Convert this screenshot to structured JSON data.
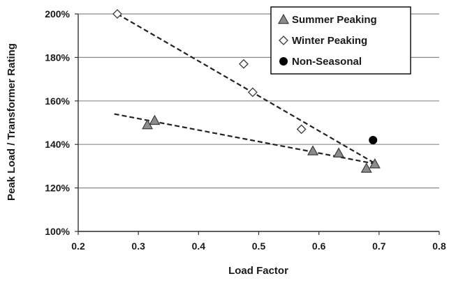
{
  "chart_data": {
    "type": "scatter",
    "title": "",
    "xlabel": "Load Factor",
    "ylabel": "Peak Load / Transformer Rating",
    "xlim": [
      0.2,
      0.8
    ],
    "ylim": [
      100,
      200
    ],
    "x_ticks": [
      0.2,
      0.3,
      0.4,
      0.5,
      0.6,
      0.7,
      0.8
    ],
    "x_tick_labels": [
      "0.2",
      "0.3",
      "0.4",
      "0.5",
      "0.6",
      "0.7",
      "0.8"
    ],
    "y_ticks": [
      100,
      120,
      140,
      160,
      180,
      200
    ],
    "y_tick_labels": [
      "100%",
      "120%",
      "140%",
      "160%",
      "180%",
      "200%"
    ],
    "grid": "horizontal major gridlines",
    "legend_position": "top-right",
    "series": [
      {
        "name": "Summer Peaking",
        "marker": "triangle",
        "color": "#7f7f7f",
        "points": [
          {
            "x": 0.315,
            "y": 149
          },
          {
            "x": 0.327,
            "y": 151
          },
          {
            "x": 0.59,
            "y": 137
          },
          {
            "x": 0.633,
            "y": 136
          },
          {
            "x": 0.679,
            "y": 129
          },
          {
            "x": 0.693,
            "y": 131
          }
        ],
        "trendline": {
          "x": [
            0.26,
            0.695
          ],
          "y": [
            154,
            131
          ]
        }
      },
      {
        "name": "Winter Peaking",
        "marker": "diamond",
        "color": "#ffffff",
        "points": [
          {
            "x": 0.265,
            "y": 200
          },
          {
            "x": 0.475,
            "y": 177
          },
          {
            "x": 0.49,
            "y": 164
          },
          {
            "x": 0.571,
            "y": 147
          }
        ],
        "trendline": {
          "x": [
            0.265,
            0.695
          ],
          "y": [
            200,
            131
          ]
        }
      },
      {
        "name": "Non-Seasonal",
        "marker": "circle",
        "color": "#000000",
        "points": [
          {
            "x": 0.69,
            "y": 142
          }
        ]
      }
    ]
  }
}
